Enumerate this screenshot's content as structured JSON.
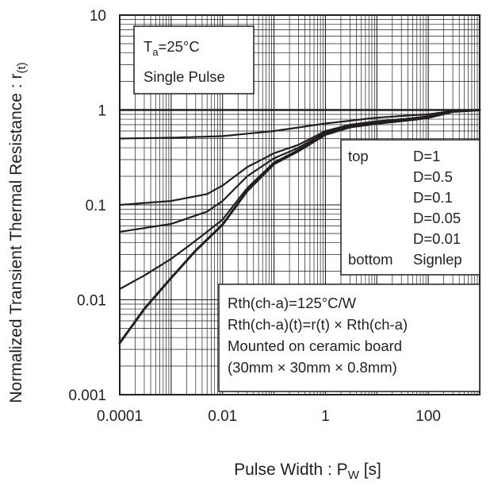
{
  "chart_data": {
    "type": "line",
    "xlabel_main": "Pulse Width : P",
    "xlabel_sub": "W",
    "xlabel_unit": " [s]",
    "ylabel_main": "Normalized Transient Thermal Resistance : r",
    "ylabel_sub": "(t)",
    "x_scale": "log",
    "y_scale": "log",
    "xlim": [
      0.0001,
      1000
    ],
    "ylim": [
      0.001,
      10
    ],
    "x_ticks": [
      {
        "value": 0.0001,
        "label": "0.0001"
      },
      {
        "value": 0.01,
        "label": "0.01"
      },
      {
        "value": 1,
        "label": "1"
      },
      {
        "value": 100,
        "label": "100"
      }
    ],
    "y_ticks": [
      {
        "value": 10,
        "label": "10"
      },
      {
        "value": 1,
        "label": "1"
      },
      {
        "value": 0.1,
        "label": "0.1"
      },
      {
        "value": 0.01,
        "label": "0.01"
      },
      {
        "value": 0.001,
        "label": "0.001"
      }
    ],
    "grid": true,
    "conditions_box": {
      "t_letter": "T",
      "t_sub": "a",
      "t_value": "=25°C",
      "line2": "Single Pulse"
    },
    "legend": {
      "top_label": "top",
      "bottom_label": "bottom",
      "entries": [
        "D=1",
        "D=0.5",
        "D=0.1",
        "D=0.05",
        "D=0.01",
        "Signlep"
      ]
    },
    "notes": [
      "Rth(ch-a)=125°C/W",
      "Rth(ch-a)(t)=r(t) × Rth(ch-a)",
      "Mounted on ceramic board",
      "(30mm  ×  30mm  ×  0.8mm)"
    ],
    "series": [
      {
        "name": "D=1",
        "width": 2.6,
        "points": [
          [
            0.0001,
            1
          ],
          [
            1000,
            1
          ]
        ]
      },
      {
        "name": "D=0.5",
        "width": 2.2,
        "points": [
          [
            0.0001,
            0.5
          ],
          [
            0.001,
            0.51
          ],
          [
            0.01,
            0.53
          ],
          [
            0.1,
            0.6
          ],
          [
            1,
            0.72
          ],
          [
            10,
            0.83
          ],
          [
            50,
            0.88
          ],
          [
            100,
            0.9
          ],
          [
            300,
            0.98
          ],
          [
            1000,
            1
          ]
        ]
      },
      {
        "name": "D=0.1",
        "width": 2.2,
        "points": [
          [
            0.0001,
            0.1
          ],
          [
            0.001,
            0.11
          ],
          [
            0.005,
            0.13
          ],
          [
            0.01,
            0.16
          ],
          [
            0.03,
            0.25
          ],
          [
            0.1,
            0.35
          ],
          [
            0.3,
            0.43
          ],
          [
            1,
            0.6
          ],
          [
            3,
            0.7
          ],
          [
            10,
            0.76
          ],
          [
            50,
            0.82
          ],
          [
            100,
            0.86
          ],
          [
            300,
            0.97
          ],
          [
            1000,
            1
          ]
        ]
      },
      {
        "name": "D=0.05",
        "width": 2.2,
        "points": [
          [
            0.0001,
            0.052
          ],
          [
            0.001,
            0.063
          ],
          [
            0.005,
            0.085
          ],
          [
            0.01,
            0.11
          ],
          [
            0.03,
            0.2
          ],
          [
            0.1,
            0.31
          ],
          [
            0.3,
            0.4
          ],
          [
            1,
            0.58
          ],
          [
            3,
            0.68
          ],
          [
            10,
            0.74
          ],
          [
            50,
            0.8
          ],
          [
            100,
            0.85
          ],
          [
            300,
            0.97
          ],
          [
            1000,
            1
          ]
        ]
      },
      {
        "name": "D=0.01",
        "width": 2.2,
        "points": [
          [
            0.0001,
            0.013
          ],
          [
            0.0003,
            0.018
          ],
          [
            0.001,
            0.027
          ],
          [
            0.003,
            0.042
          ],
          [
            0.01,
            0.07
          ],
          [
            0.03,
            0.15
          ],
          [
            0.1,
            0.28
          ],
          [
            0.3,
            0.38
          ],
          [
            1,
            0.56
          ],
          [
            3,
            0.67
          ],
          [
            10,
            0.73
          ],
          [
            50,
            0.8
          ],
          [
            100,
            0.84
          ],
          [
            300,
            0.97
          ],
          [
            1000,
            1
          ]
        ]
      },
      {
        "name": "Signlep",
        "width": 3.0,
        "points": [
          [
            0.0001,
            0.0035
          ],
          [
            0.0003,
            0.008
          ],
          [
            0.001,
            0.017
          ],
          [
            0.003,
            0.033
          ],
          [
            0.01,
            0.062
          ],
          [
            0.03,
            0.14
          ],
          [
            0.1,
            0.27
          ],
          [
            0.3,
            0.37
          ],
          [
            1,
            0.55
          ],
          [
            3,
            0.66
          ],
          [
            10,
            0.72
          ],
          [
            50,
            0.79
          ],
          [
            100,
            0.83
          ],
          [
            300,
            0.96
          ],
          [
            1000,
            1
          ]
        ]
      }
    ]
  }
}
